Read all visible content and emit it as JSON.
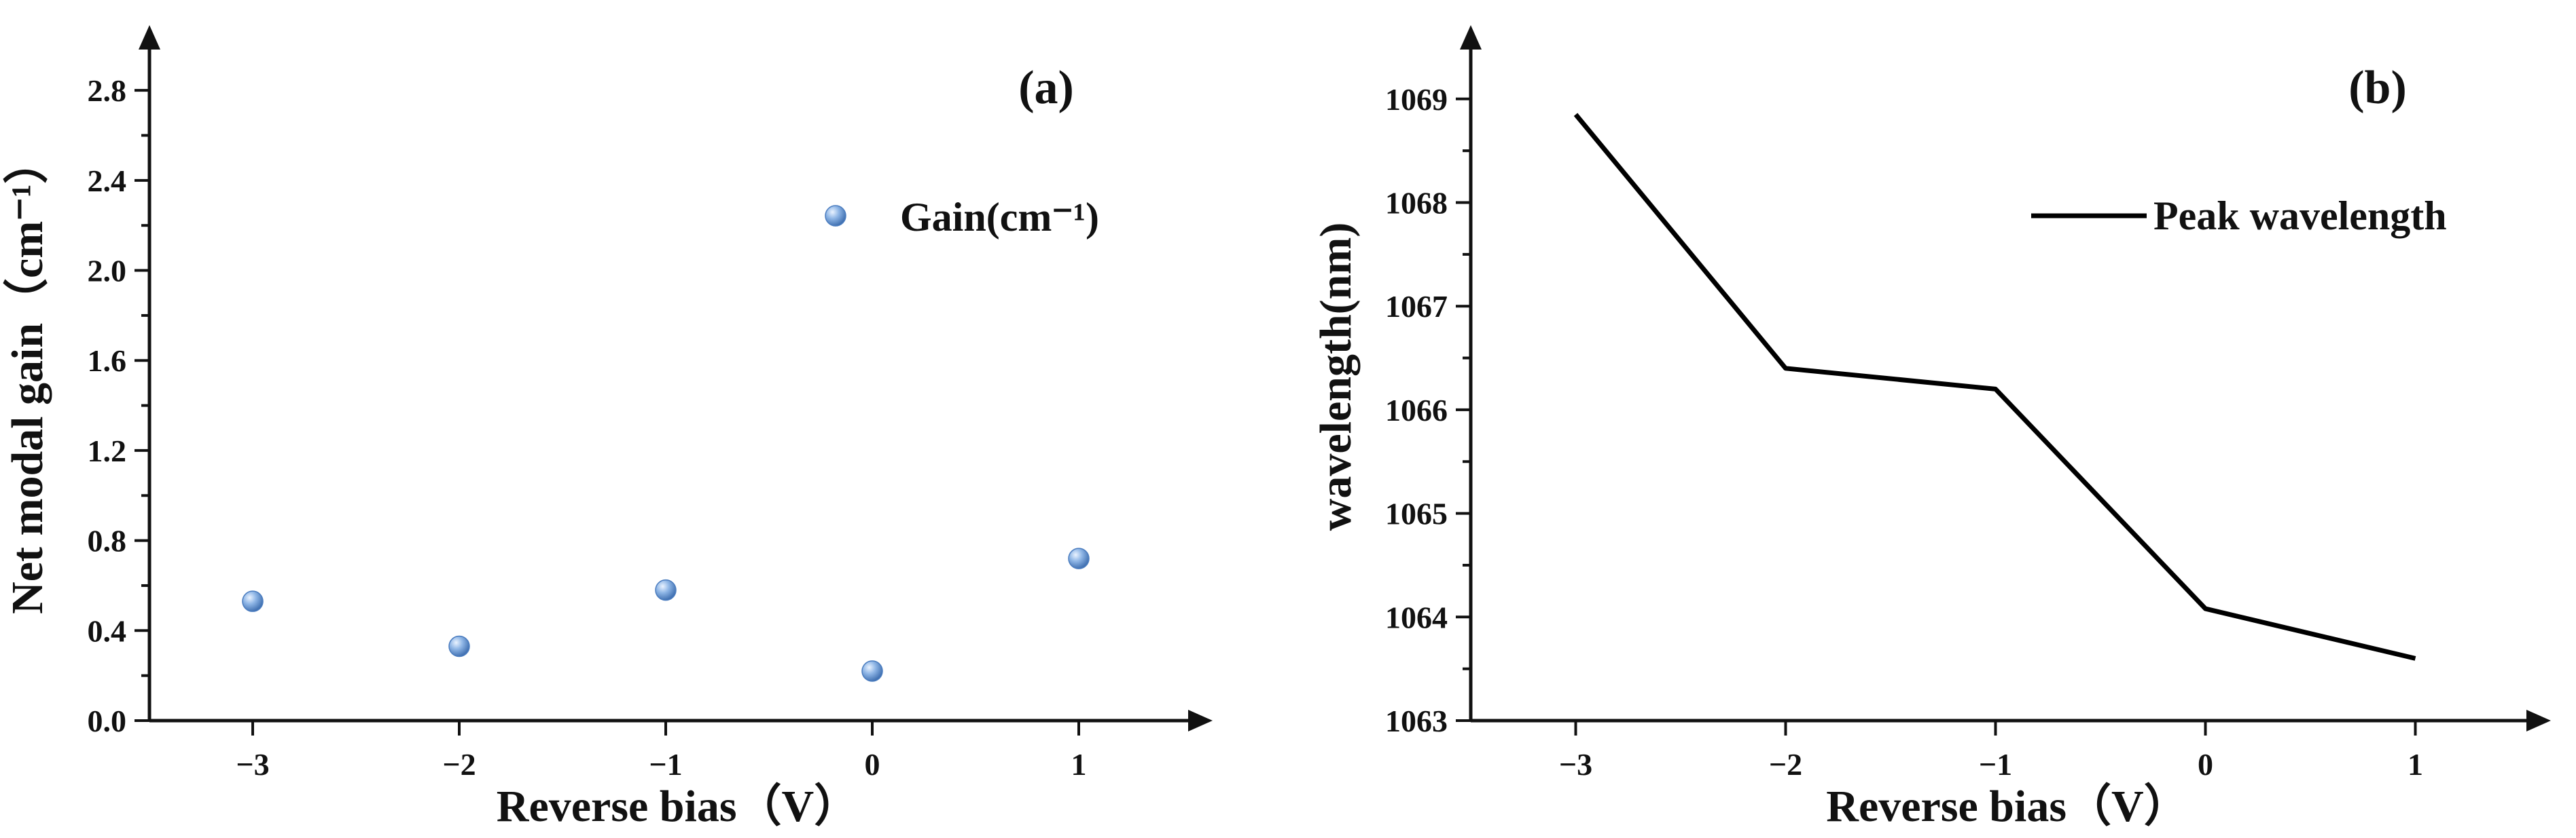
{
  "chart_data": [
    {
      "type": "scatter",
      "panel_label": "(a)",
      "xlabel": "Reverse bias（V）",
      "ylabel": "Net modal gain（cm⁻¹）",
      "xlim": [
        -3.5,
        1.5
      ],
      "ylim": [
        0.0,
        2.9
      ],
      "x_ticks": [
        -3,
        -2,
        -1,
        0,
        1
      ],
      "x_tick_labels": [
        "−3",
        "−2",
        "−1",
        "0",
        "1"
      ],
      "y_ticks": [
        0.0,
        0.4,
        0.8,
        1.2,
        1.6,
        2.0,
        2.4,
        2.8
      ],
      "y_tick_labels": [
        "0.0",
        "0.4",
        "0.8",
        "1.2",
        "1.6",
        "2.0",
        "2.4",
        "2.8"
      ],
      "grid": false,
      "legend_position": "top-right",
      "series": [
        {
          "name": "Gain(cm⁻¹)",
          "color": "#5b8fcf",
          "x": [
            -3,
            -2,
            -1,
            0,
            1
          ],
          "y": [
            0.53,
            0.33,
            0.58,
            0.22,
            0.72
          ]
        }
      ]
    },
    {
      "type": "line",
      "panel_label": "(b)",
      "xlabel": "Reverse bias（V）",
      "ylabel": "wavelength(nm)",
      "xlim": [
        -3.5,
        1.5
      ],
      "ylim": [
        1063,
        1069.3
      ],
      "x_ticks": [
        -3,
        -2,
        -1,
        0,
        1
      ],
      "x_tick_labels": [
        "−3",
        "−2",
        "−1",
        "0",
        "1"
      ],
      "y_ticks": [
        1063,
        1064,
        1065,
        1066,
        1067,
        1068,
        1069
      ],
      "y_tick_labels": [
        "1063",
        "1064",
        "1065",
        "1066",
        "1067",
        "1068",
        "1069"
      ],
      "grid": false,
      "legend_position": "top-right",
      "series": [
        {
          "name": "Peak wavelength",
          "color": "#000000",
          "x": [
            -3,
            -2,
            -1,
            0,
            1
          ],
          "y": [
            1068.85,
            1066.4,
            1066.2,
            1064.08,
            1063.6
          ]
        }
      ]
    }
  ]
}
